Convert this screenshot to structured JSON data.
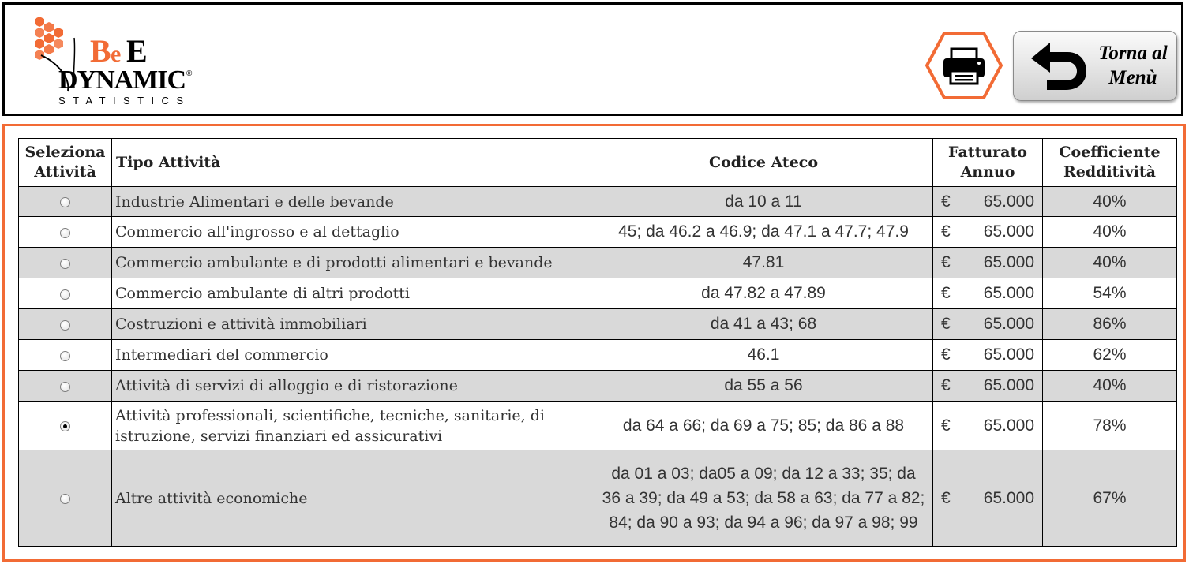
{
  "header": {
    "logo": {
      "brand_top": "BeE",
      "brand_mid": "DYNAMIC",
      "brand_sub": "STATISTICS",
      "reg_mark": "®"
    },
    "print_icon": "printer-icon",
    "back_button": {
      "line1": "Torna al",
      "line2": "Menù",
      "icon": "back-arrow-icon"
    }
  },
  "colors": {
    "accent": "#f26b35",
    "row_shade": "#d9d9d9",
    "border": "#000000"
  },
  "table": {
    "columns": {
      "seleziona_1": "Seleziona",
      "seleziona_2": "Attività",
      "tipo": "Tipo Attività",
      "codice": "Codice Ateco",
      "fatturato_1": "Fatturato",
      "fatturato_2": "Annuo",
      "coef_1": "Coefficiente",
      "coef_2": "Redditività"
    },
    "currency": "€",
    "rows": [
      {
        "selected": false,
        "tipo": [
          "Industrie Alimentari e delle bevande"
        ],
        "codice": [
          "da 10 a 11"
        ],
        "fatturato": "65.000",
        "coefficiente": "40%"
      },
      {
        "selected": false,
        "tipo": [
          "Commercio all'ingrosso e al dettaglio"
        ],
        "codice": [
          "45; da 46.2 a 46.9; da 47.1 a 47.7; 47.9"
        ],
        "fatturato": "65.000",
        "coefficiente": "40%"
      },
      {
        "selected": false,
        "tipo": [
          "Commercio ambulante e di prodotti alimentari e bevande"
        ],
        "codice": [
          "47.81"
        ],
        "fatturato": "65.000",
        "coefficiente": "40%"
      },
      {
        "selected": false,
        "tipo": [
          "Commercio ambulante di altri prodotti"
        ],
        "codice": [
          "da 47.82 a 47.89"
        ],
        "fatturato": "65.000",
        "coefficiente": "54%"
      },
      {
        "selected": false,
        "tipo": [
          "Costruzioni e attività immobiliari"
        ],
        "codice": [
          "da 41 a 43; 68"
        ],
        "fatturato": "65.000",
        "coefficiente": "86%"
      },
      {
        "selected": false,
        "tipo": [
          "Intermediari del commercio"
        ],
        "codice": [
          "46.1"
        ],
        "fatturato": "65.000",
        "coefficiente": "62%"
      },
      {
        "selected": false,
        "tipo": [
          "Attività di servizi di alloggio e di ristorazione"
        ],
        "codice": [
          "da 55 a 56"
        ],
        "fatturato": "65.000",
        "coefficiente": "40%"
      },
      {
        "selected": true,
        "tipo": [
          "Attività professionali, scientifiche, tecniche, sanitarie, di",
          "istruzione, servizi finanziari ed assicurativi"
        ],
        "codice": [
          "da 64 a 66; da 69 a 75; 85; da 86 a 88"
        ],
        "fatturato": "65.000",
        "coefficiente": "78%"
      },
      {
        "selected": false,
        "tipo": [
          "Altre attività economiche"
        ],
        "codice": [
          "da 01 a 03; da05 a 09; da 12 a 33; 35; da",
          "36 a 39; da 49 a 53; da 58 a 63; da 77 a 82;",
          "84; da 90 a 93; da 94 a 96; da 97 a 98; 99"
        ],
        "fatturato": "65.000",
        "coefficiente": "67%"
      }
    ]
  }
}
